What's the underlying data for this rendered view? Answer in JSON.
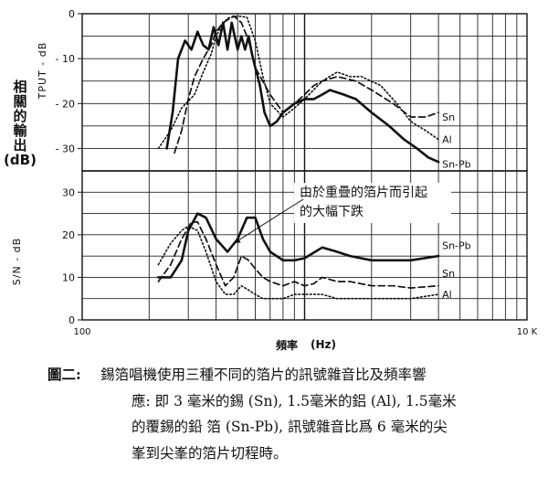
{
  "chart_data": [
    {
      "id": "top",
      "type": "line",
      "ylabel_axis": "TPUT - dB",
      "ylabel_side": [
        "相",
        "關",
        "的",
        "輸",
        "出",
        "(dB)"
      ],
      "xscale": "log",
      "xlim": [
        100,
        10000
      ],
      "ylim": [
        -35,
        0
      ],
      "yticks": [
        "0",
        "- 10",
        "- 20",
        "- 30"
      ],
      "ytick_values": [
        0,
        -10,
        -20,
        -30
      ],
      "grid": true,
      "series": [
        {
          "name": "Sn",
          "style": "dashed",
          "x": [
            260,
            280,
            300,
            320,
            350,
            380,
            400,
            430,
            480,
            520,
            560,
            600,
            700,
            800,
            900,
            1000,
            1100,
            1200,
            1400,
            1700,
            2000,
            2500,
            3000,
            3500,
            4000
          ],
          "y": [
            -31,
            -26,
            -19,
            -14,
            -10,
            -7,
            -4,
            -2,
            -0.5,
            -2,
            -6,
            -12,
            -18,
            -22,
            -20,
            -18,
            -16,
            -15,
            -14,
            -15,
            -17,
            -20,
            -23,
            -23,
            -22
          ]
        },
        {
          "name": "Al",
          "style": "dotted",
          "x": [
            220,
            250,
            280,
            320,
            350,
            380,
            400,
            420,
            450,
            500,
            550,
            600,
            650,
            700,
            800,
            900,
            1000,
            1200,
            1400,
            1600,
            1800,
            2200,
            2600,
            3000,
            3500,
            4000
          ],
          "y": [
            -30,
            -26,
            -21,
            -18,
            -13,
            -9,
            -5,
            -3,
            -1,
            -0.5,
            -0.8,
            -6,
            -14,
            -20,
            -23,
            -21,
            -19,
            -15,
            -13,
            -14,
            -14,
            -16,
            -20,
            -24,
            -26,
            -28
          ]
        },
        {
          "name": "Sn-Pb",
          "style": "solid",
          "x": [
            240,
            255,
            270,
            290,
            310,
            330,
            350,
            370,
            390,
            410,
            430,
            450,
            470,
            500,
            520,
            540,
            560,
            580,
            600,
            630,
            660,
            700,
            750,
            800,
            850,
            900,
            1000,
            1100,
            1200,
            1300,
            1500,
            1700,
            2000,
            2400,
            2800,
            3200,
            3600,
            4000
          ],
          "y": [
            -30,
            -22,
            -10,
            -6,
            -8,
            -4,
            -7,
            -8,
            -3,
            -7,
            -2,
            -8,
            -2,
            -8,
            -5,
            -8,
            -5,
            -9,
            -12,
            -16,
            -22,
            -25,
            -24,
            -22,
            -21,
            -20,
            -19,
            -19,
            -18,
            -17,
            -18,
            -19,
            -22,
            -25,
            -28,
            -30,
            -32,
            -33
          ]
        }
      ],
      "series_labels": [
        {
          "text": "Sn",
          "series": "Sn",
          "x": 4000,
          "y": -23
        },
        {
          "text": "Al",
          "series": "Al",
          "x": 4000,
          "y": -28
        },
        {
          "text": "Sn-Pb",
          "series": "Sn-Pb",
          "x": 4000,
          "y": -33.5
        }
      ]
    },
    {
      "id": "bottom",
      "type": "line",
      "ylabel_axis": "S/N - dB",
      "xscale": "log",
      "xlim": [
        100,
        10000
      ],
      "ylim": [
        0,
        35
      ],
      "yticks": [
        "0",
        "10",
        "20",
        "30"
      ],
      "ytick_values": [
        0,
        10,
        20,
        30
      ],
      "grid": true,
      "xtick_labels": [
        {
          "text": "100",
          "x": 100
        },
        {
          "text": "10 K",
          "x": 10000
        }
      ],
      "xlabel": "頻率",
      "xlabel_unit": "(Hz)",
      "series": [
        {
          "name": "Sn-Pb",
          "style": "solid",
          "x": [
            220,
            250,
            280,
            300,
            330,
            360,
            400,
            450,
            500,
            550,
            600,
            650,
            700,
            800,
            900,
            1000,
            1200,
            1400,
            1600,
            2000,
            2500,
            3000,
            4000
          ],
          "y": [
            10,
            10,
            14,
            21,
            25,
            24,
            19,
            16,
            19,
            24,
            24,
            19,
            16,
            14,
            14,
            14.5,
            17,
            16,
            15,
            14,
            14,
            14,
            15
          ]
        },
        {
          "name": "Sn",
          "style": "dashed",
          "x": [
            220,
            250,
            280,
            310,
            330,
            360,
            400,
            440,
            480,
            520,
            560,
            600,
            650,
            700,
            800,
            900,
            1000,
            1100,
            1200,
            1400,
            1600,
            2000,
            2500,
            3000,
            4000
          ],
          "y": [
            9,
            13,
            19,
            23,
            23,
            19,
            13,
            8,
            10,
            15,
            14,
            12,
            10,
            9,
            8,
            9,
            8,
            8.5,
            10,
            9,
            9,
            8,
            8,
            7.5,
            8
          ]
        },
        {
          "name": "Al",
          "style": "dotted",
          "x": [
            220,
            250,
            280,
            300,
            330,
            360,
            400,
            440,
            480,
            520,
            560,
            600,
            650,
            700,
            800,
            900,
            1000,
            1200,
            1400,
            1600,
            2000,
            2500,
            3000,
            4000
          ],
          "y": [
            13,
            18,
            21,
            22,
            21,
            16,
            9,
            6,
            6,
            8,
            7,
            6,
            5,
            5,
            5,
            6,
            6,
            6,
            5,
            5,
            5,
            5,
            5,
            6
          ]
        }
      ],
      "series_labels": [
        {
          "text": "Sn-Pb",
          "series": "Sn-Pb",
          "x": 4000,
          "y": 17.5
        },
        {
          "text": "Sn",
          "series": "Sn",
          "x": 4000,
          "y": 11
        },
        {
          "text": "Al",
          "series": "Al",
          "x": 4000,
          "y": 6
        }
      ],
      "annotation": {
        "lines": [
          "由於重疊的箔片而引起",
          "的大幅下跌"
        ],
        "arrow_to_x": 480,
        "arrow_to_y": 18
      }
    }
  ],
  "caption": {
    "label": "圖二:",
    "lines": [
      "錫箔唱機使用三種不同的箔片的訊號雜音比及頻率響",
      "應: 即 3 毫米的錫 (Sn), 1.5毫米的鋁 (Al), 1.5毫米",
      "的覆錫的鉛 箔 (Sn-Pb), 訊號雜音比爲 6 毫米的尖",
      "峯到尖峯的箔片切程時。"
    ]
  }
}
